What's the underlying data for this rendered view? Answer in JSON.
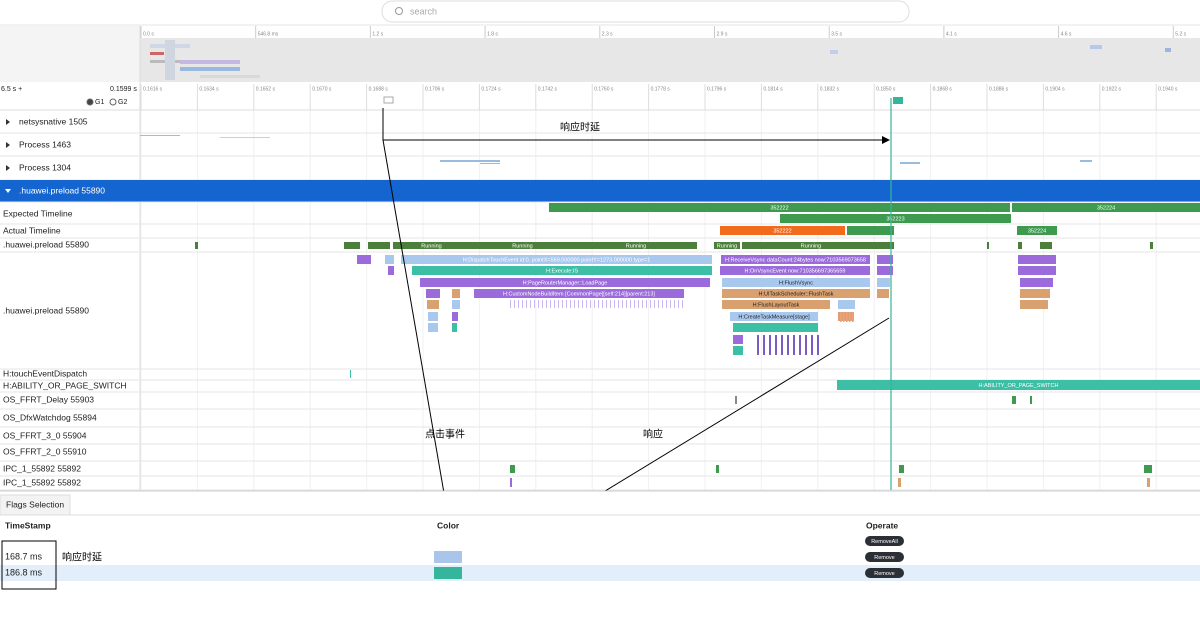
{
  "search": {
    "placeholder": "search"
  },
  "overview_ticks": [
    "0.0 s",
    "546.8 ms",
    "1.2 s",
    "1.8 s",
    "2.3 s",
    "2.9 s",
    "3.5 s",
    "4.1 s",
    "4.6 s",
    "5.2 s"
  ],
  "header": {
    "total": "6.5 s +",
    "span": "0.1599 s",
    "groups": [
      "G1",
      "G2"
    ]
  },
  "ruler_ticks": [
    "0.1616 s",
    "0.1634 s",
    "0.1652 s",
    "0.1670 s",
    "0.1688 s",
    "0.1706 s",
    "0.1724 s",
    "0.1742 s",
    "0.1760 s",
    "0.1778 s",
    "0.1796 s",
    "0.1814 s",
    "0.1832 s",
    "0.1850 s",
    "0.1868 s",
    "0.1886 s",
    "0.1904 s",
    "0.1922 s",
    "0.1940 s"
  ],
  "rows": [
    "netsysnative 1505",
    "Process 1463",
    "Process 1304",
    ".huawei.preload 55890",
    "Expected Timeline",
    "Actual Timeline",
    ".huawei.preload 55890",
    ".huawei.preload 55890",
    "H:touchEventDispatch",
    "H:ABILITY_OR_PAGE_SWITCH",
    "OS_FFRT_Delay 55903",
    "OS_DfxWatchdog 55894",
    "OS_FFRT_3_0 55904",
    "OS_FFRT_2_0 55910",
    "IPC_1_55892 55892",
    "IPC_1_55892 55892"
  ],
  "slices": [
    "352222",
    "352223",
    "352224",
    "Running",
    "H:DispatchTouchEvent id:0, pointX=569.000000 pointY=1273.000000 type=1",
    "H:Execute:IS",
    "H:PageRouterManager::LoadPage",
    "H:CustomNodeBuildItem [CommonPage][self:214][parent:213]",
    "H:ReceiveVsync dataCount:24bytes now:7103569073658",
    "H:OnVsyncEvent now:710356697365659",
    "H:FlushVsync",
    "H:UITaskScheduler::FlushTask",
    "H:FlushLayoutTask",
    "H:CreateTaskMeasure[stage]",
    "H:ABILITY_OR_PAGE_SWITCH"
  ],
  "annotations": [
    "响应时延",
    "点击事件",
    "响应",
    "响应时延"
  ],
  "flags_panel": {
    "tab": "Flags Selection",
    "columns": [
      "TimeStamp",
      "Color",
      "Operate"
    ],
    "remove_all": "RemoveAll",
    "rows": [
      {
        "timestamp": "168.7 ms",
        "color": "#a9c5ec",
        "button": "Remove"
      },
      {
        "timestamp": "186.8 ms",
        "color": "#35b59c",
        "button": "Remove"
      }
    ]
  }
}
